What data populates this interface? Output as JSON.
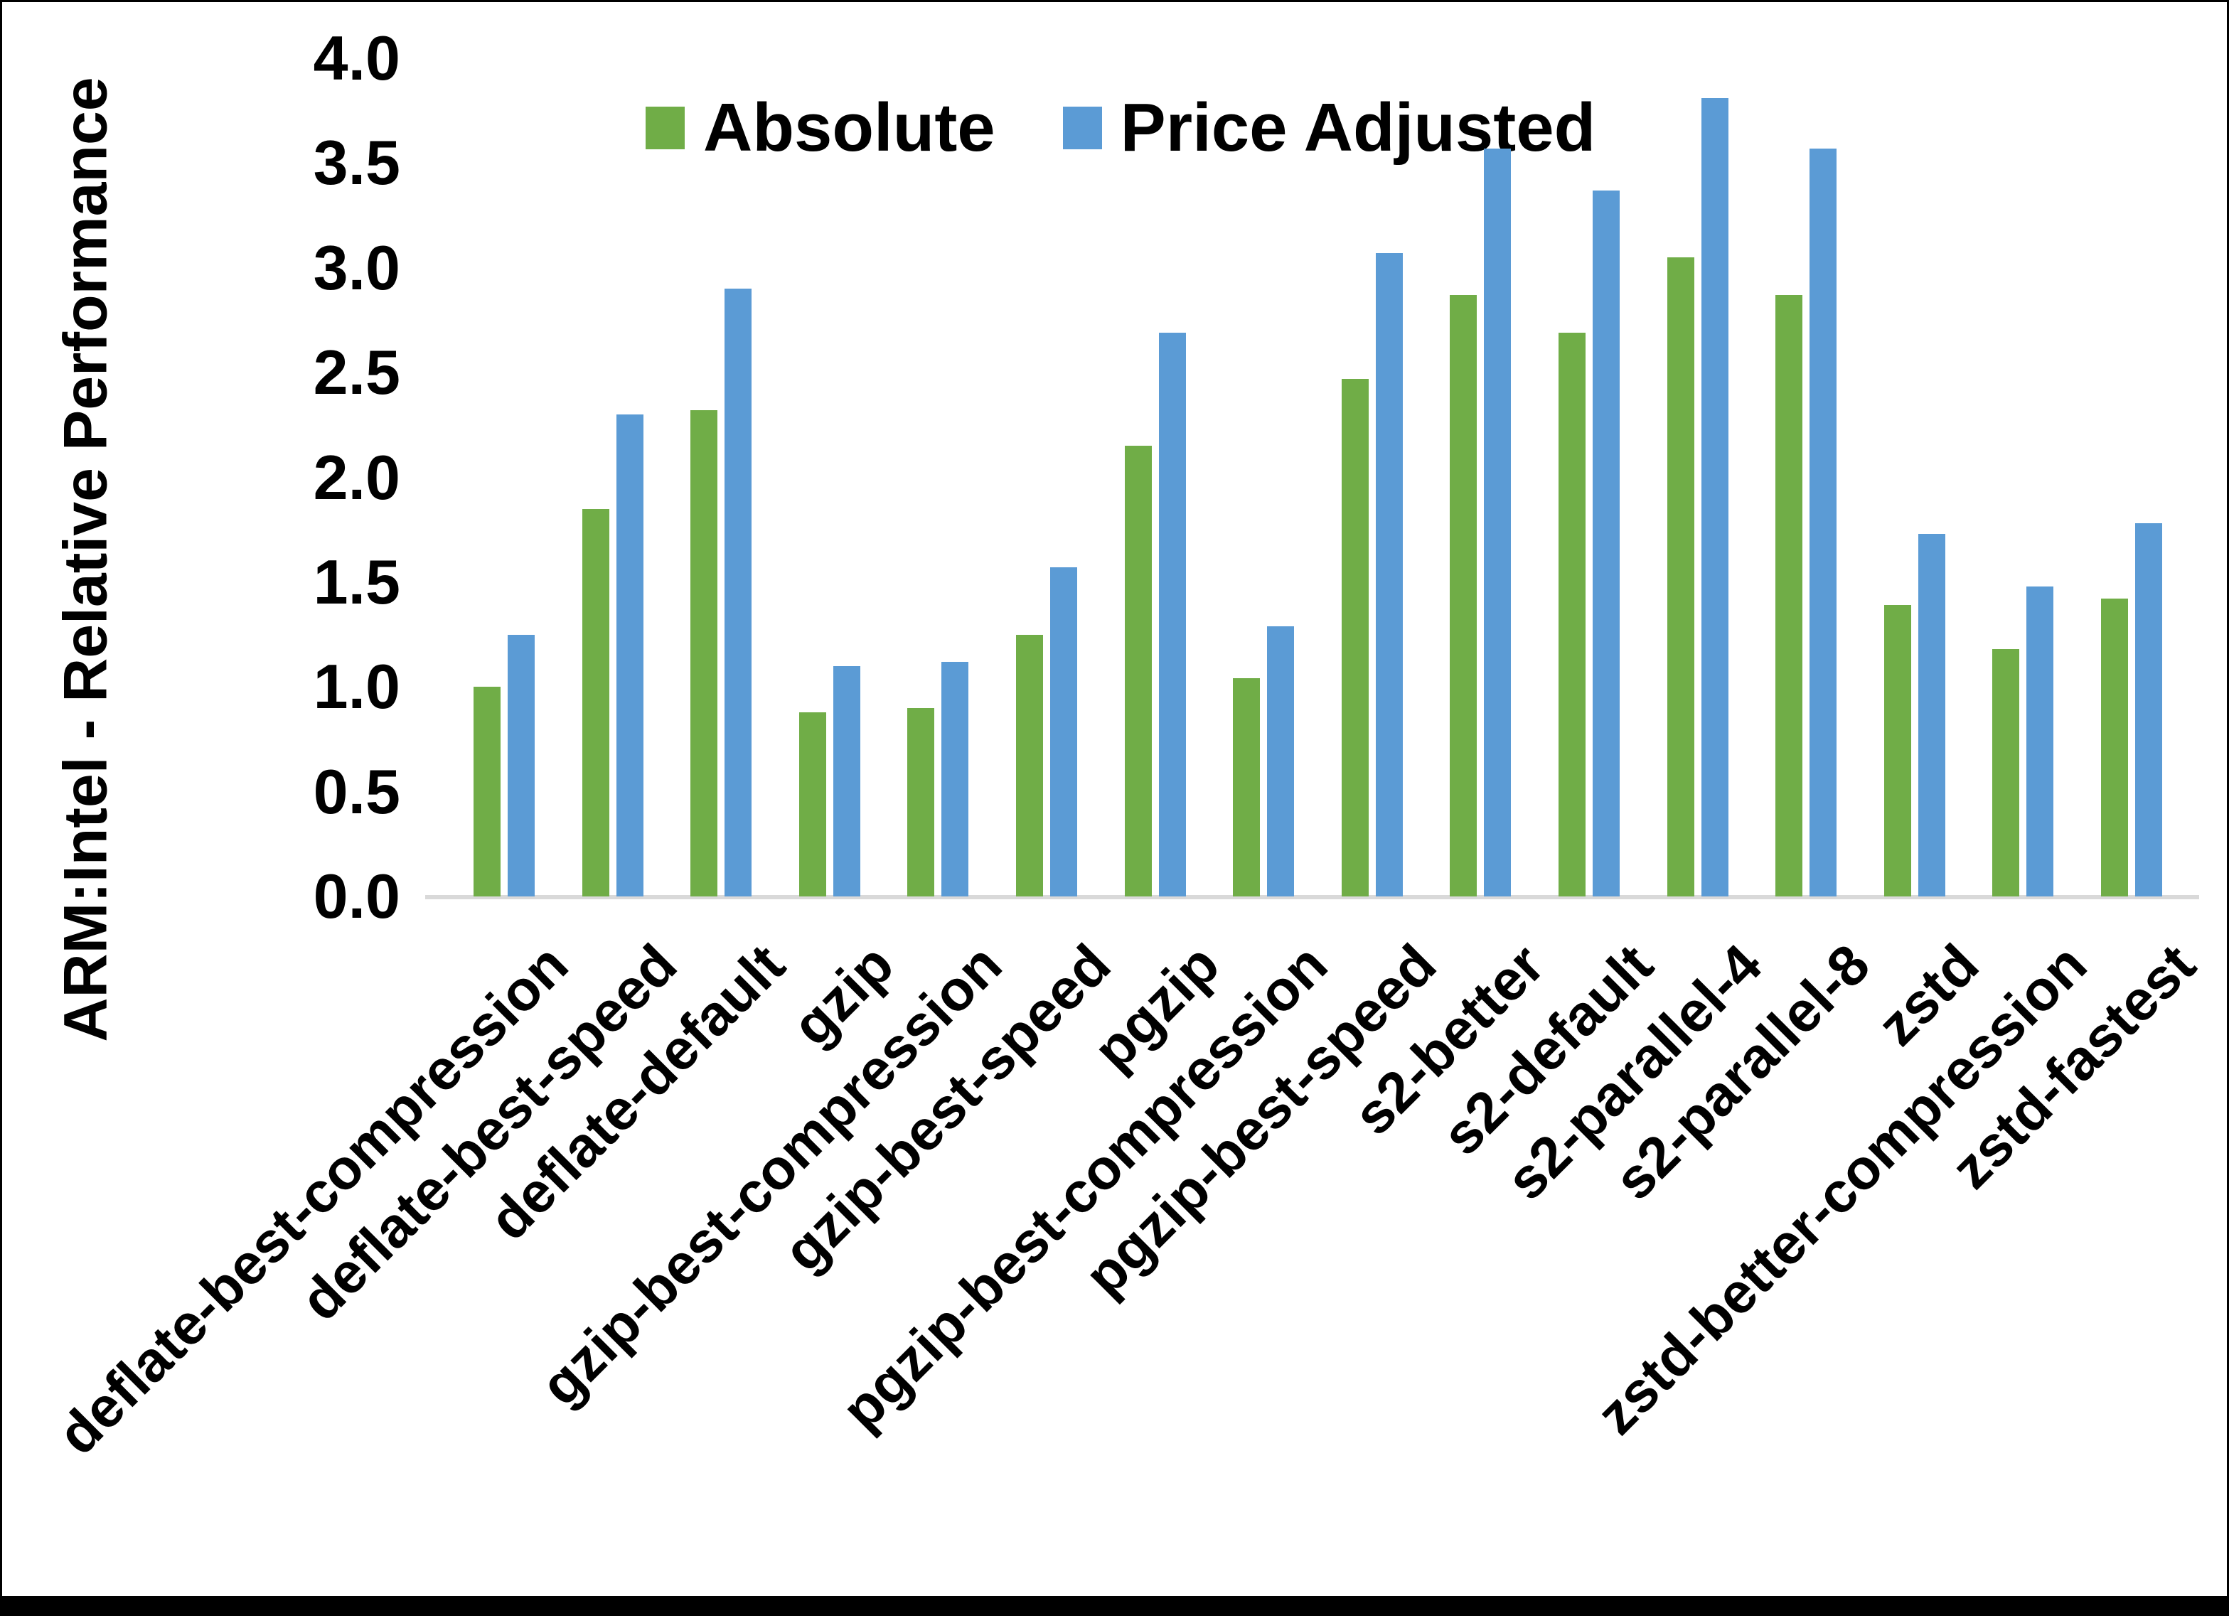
{
  "chart_data": {
    "type": "bar",
    "title": "",
    "xlabel": "",
    "ylabel": "ARM:Intel - Relative Performance",
    "ylim": [
      0.0,
      4.0
    ],
    "ytick_step": 0.5,
    "ytick_labels": [
      "0.0",
      "0.5",
      "1.0",
      "1.5",
      "2.0",
      "2.5",
      "3.0",
      "3.5",
      "4.0"
    ],
    "grid": false,
    "legend_position": "top-center",
    "axis_line_color": "#D9D9D9",
    "categories": [
      "deflate-best-compression",
      "deflate-best-speed",
      "deflate-default",
      "gzip",
      "gzip-best-compression",
      "gzip-best-speed",
      "pgzip",
      "pgzip-best-compression",
      "pgzip-best-speed",
      "s2-better",
      "s2-default",
      "s2-parallel-4",
      "s2-parallel-8",
      "zstd",
      "zstd-better-compression",
      "zstd-fastest"
    ],
    "series": [
      {
        "name": "Absolute",
        "color": "#70AD47",
        "values": [
          1.0,
          1.85,
          2.32,
          0.88,
          0.9,
          1.25,
          2.15,
          1.04,
          2.47,
          2.87,
          2.69,
          3.05,
          2.87,
          1.39,
          1.18,
          1.42
        ]
      },
      {
        "name": "Price Adjusted",
        "color": "#5B9BD5",
        "values": [
          1.25,
          2.3,
          2.9,
          1.1,
          1.12,
          1.57,
          2.69,
          1.29,
          3.07,
          3.57,
          3.37,
          3.81,
          3.57,
          1.73,
          1.48,
          1.78
        ]
      }
    ]
  }
}
